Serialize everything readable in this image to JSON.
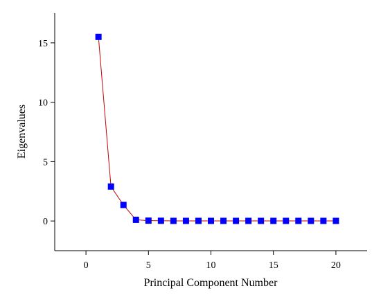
{
  "chart_data": {
    "type": "line",
    "xlabel": "Principal Component Number",
    "ylabel": "Eigenvalues",
    "xlim": [
      -2.5,
      22.5
    ],
    "ylim": [
      -2.5,
      17.5
    ],
    "xticks": [
      0,
      5,
      10,
      15,
      20
    ],
    "yticks": [
      0,
      5,
      10,
      15
    ],
    "grid": false,
    "series": [
      {
        "marker": "square",
        "marker_color": "#0000ff",
        "line_color": "#c00000",
        "x": [
          1,
          2,
          3,
          4,
          5,
          6,
          7,
          8,
          9,
          10,
          11,
          12,
          13,
          14,
          15,
          16,
          17,
          18,
          19,
          20
        ],
        "y": [
          15.5,
          2.9,
          1.35,
          0.1,
          0.03,
          0.02,
          0.01,
          0.01,
          0.01,
          0.01,
          0.01,
          0.01,
          0.01,
          0.01,
          0.01,
          0.01,
          0.01,
          0.01,
          0.01,
          0.01
        ]
      }
    ]
  }
}
